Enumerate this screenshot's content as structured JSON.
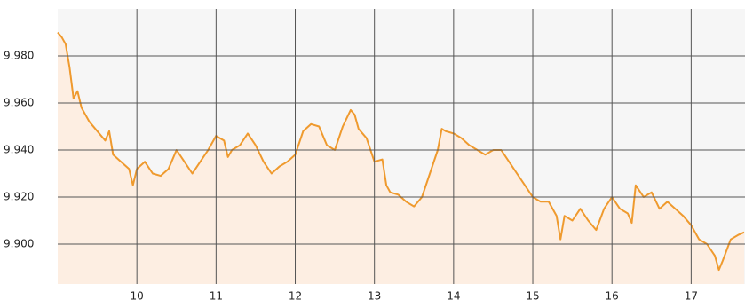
{
  "chart_data": {
    "type": "line",
    "x": [
      9.0,
      9.05,
      9.1,
      9.15,
      9.2,
      9.25,
      9.3,
      9.35,
      9.4,
      9.5,
      9.6,
      9.65,
      9.7,
      9.8,
      9.9,
      9.95,
      10.0,
      10.1,
      10.2,
      10.3,
      10.4,
      10.5,
      10.6,
      10.7,
      10.8,
      10.9,
      11.0,
      11.1,
      11.15,
      11.2,
      11.3,
      11.4,
      11.5,
      11.6,
      11.7,
      11.8,
      11.9,
      12.0,
      12.1,
      12.2,
      12.3,
      12.4,
      12.5,
      12.6,
      12.7,
      12.75,
      12.8,
      12.9,
      13.0,
      13.1,
      13.15,
      13.2,
      13.3,
      13.4,
      13.5,
      13.6,
      13.7,
      13.8,
      13.85,
      13.9,
      14.0,
      14.1,
      14.2,
      14.3,
      14.4,
      14.5,
      14.6,
      14.7,
      14.8,
      14.9,
      15.0,
      15.1,
      15.2,
      15.3,
      15.35,
      15.4,
      15.5,
      15.6,
      15.7,
      15.8,
      15.9,
      16.0,
      16.1,
      16.2,
      16.25,
      16.3,
      16.4,
      16.5,
      16.6,
      16.7,
      16.8,
      16.9,
      17.0,
      17.1,
      17.2,
      17.3,
      17.35,
      17.4,
      17.5,
      17.6,
      17.67
    ],
    "series": [
      {
        "color": "#ef9a2e",
        "fill": "#fdeee2",
        "values": [
          9.99,
          9.988,
          9.985,
          9.975,
          9.962,
          9.965,
          9.958,
          9.955,
          9.952,
          9.948,
          9.944,
          9.948,
          9.938,
          9.935,
          9.932,
          9.925,
          9.932,
          9.935,
          9.93,
          9.929,
          9.932,
          9.94,
          9.935,
          9.93,
          9.935,
          9.94,
          9.946,
          9.944,
          9.937,
          9.94,
          9.942,
          9.947,
          9.942,
          9.935,
          9.93,
          9.933,
          9.935,
          9.938,
          9.948,
          9.951,
          9.95,
          9.942,
          9.94,
          9.95,
          9.957,
          9.955,
          9.949,
          9.945,
          9.935,
          9.936,
          9.925,
          9.922,
          9.921,
          9.918,
          9.916,
          9.92,
          9.93,
          9.94,
          9.949,
          9.948,
          9.947,
          9.945,
          9.942,
          9.94,
          9.938,
          9.94,
          9.94,
          9.935,
          9.93,
          9.925,
          9.92,
          9.918,
          9.918,
          9.912,
          9.902,
          9.912,
          9.91,
          9.915,
          9.91,
          9.906,
          9.915,
          9.92,
          9.915,
          9.913,
          9.909,
          9.925,
          9.92,
          9.922,
          9.915,
          9.918,
          9.915,
          9.912,
          9.908,
          9.902,
          9.9,
          9.895,
          9.889,
          9.893,
          9.902,
          9.904,
          9.905
        ]
      }
    ],
    "xlim": [
      9.0,
      17.68
    ],
    "ylim": [
      9.883,
      10.0
    ],
    "xticks": [
      10,
      11,
      12,
      13,
      14,
      15,
      16,
      17
    ],
    "yticks": [
      {
        "value": 9.9,
        "label": "9.900"
      },
      {
        "value": 9.92,
        "label": "9.920"
      },
      {
        "value": 9.94,
        "label": "9.940"
      },
      {
        "value": 9.96,
        "label": "9.960"
      },
      {
        "value": 9.98,
        "label": "9.980"
      }
    ],
    "grid": true
  }
}
